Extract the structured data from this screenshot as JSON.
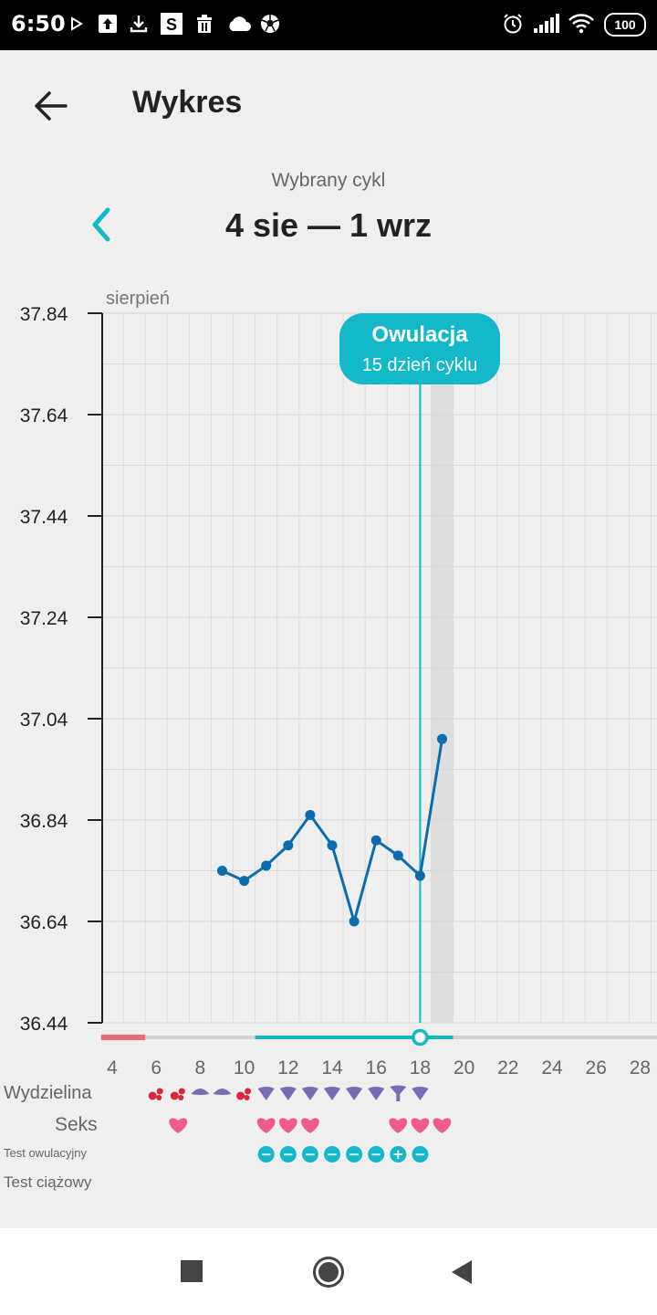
{
  "status_bar": {
    "time": "6:50",
    "battery": "100",
    "icons": [
      "play-icon",
      "upload-icon",
      "download-icon",
      "s-app-icon",
      "trash-icon",
      "cloud-icon",
      "soccer-ball-icon",
      "alarm-icon",
      "signal-icon",
      "wifi-icon",
      "battery-icon"
    ]
  },
  "header": {
    "title": "Wykres"
  },
  "cycle": {
    "subtitle": "Wybrany cykl",
    "range": "4 sie — 1 wrz"
  },
  "chart_data": {
    "type": "line",
    "month_label": "sierpień",
    "x_ticks": [
      "4",
      "6",
      "8",
      "10",
      "12",
      "14",
      "16",
      "18",
      "20",
      "22",
      "24",
      "26",
      "28"
    ],
    "x_range": [
      3.5,
      30
    ],
    "y_ticks": [
      "37.84",
      "37.64",
      "37.44",
      "37.24",
      "37.04",
      "36.84",
      "36.64",
      "36.44"
    ],
    "y_range": [
      36.44,
      37.84
    ],
    "grid": true,
    "series": [
      {
        "color": "#0b6db0",
        "points": [
          {
            "x": 9,
            "y": 36.74
          },
          {
            "x": 10,
            "y": 36.72
          },
          {
            "x": 11,
            "y": 36.75
          },
          {
            "x": 12,
            "y": 36.79
          },
          {
            "x": 13,
            "y": 36.85
          },
          {
            "x": 14,
            "y": 36.79
          },
          {
            "x": 15,
            "y": 36.64
          },
          {
            "x": 16,
            "y": 36.8
          },
          {
            "x": 17,
            "y": 36.77
          },
          {
            "x": 18,
            "y": 36.73
          },
          {
            "x": 19,
            "y": 37.0
          }
        ]
      }
    ],
    "ovulation": {
      "day": 18,
      "title": "Owulacja",
      "subtitle": "15 dzień cyklu",
      "color": "#13b8c9"
    },
    "highlight_day": 19,
    "period_days": [
      3.5,
      5.5
    ],
    "fertile_window": [
      10.5,
      19.5
    ],
    "rows": {
      "discharge": {
        "label": "Wydzielina",
        "entries": [
          {
            "day": 6,
            "type": "blood"
          },
          {
            "day": 7,
            "type": "blood"
          },
          {
            "day": 8,
            "type": "creamy"
          },
          {
            "day": 9,
            "type": "creamy"
          },
          {
            "day": 10,
            "type": "blood"
          },
          {
            "day": 11,
            "type": "watery"
          },
          {
            "day": 12,
            "type": "watery"
          },
          {
            "day": 13,
            "type": "watery"
          },
          {
            "day": 14,
            "type": "watery"
          },
          {
            "day": 15,
            "type": "watery"
          },
          {
            "day": 16,
            "type": "watery"
          },
          {
            "day": 17,
            "type": "eggwhite"
          },
          {
            "day": 18,
            "type": "watery"
          }
        ]
      },
      "sex": {
        "label": "Seks",
        "days": [
          7,
          11,
          12,
          13,
          17,
          18,
          19
        ]
      },
      "ovulation_test": {
        "label": "Test owulacyjny",
        "entries": [
          {
            "day": 11,
            "result": "−"
          },
          {
            "day": 12,
            "result": "−"
          },
          {
            "day": 13,
            "result": "−"
          },
          {
            "day": 14,
            "result": "−"
          },
          {
            "day": 15,
            "result": "−"
          },
          {
            "day": 16,
            "result": "−"
          },
          {
            "day": 17,
            "result": "+"
          },
          {
            "day": 18,
            "result": "−"
          }
        ]
      },
      "pregnancy_test": {
        "label": "Test ciążowy",
        "entries": []
      }
    }
  },
  "nav": {
    "buttons": [
      "recent-apps-icon",
      "home-icon",
      "back-icon"
    ]
  }
}
